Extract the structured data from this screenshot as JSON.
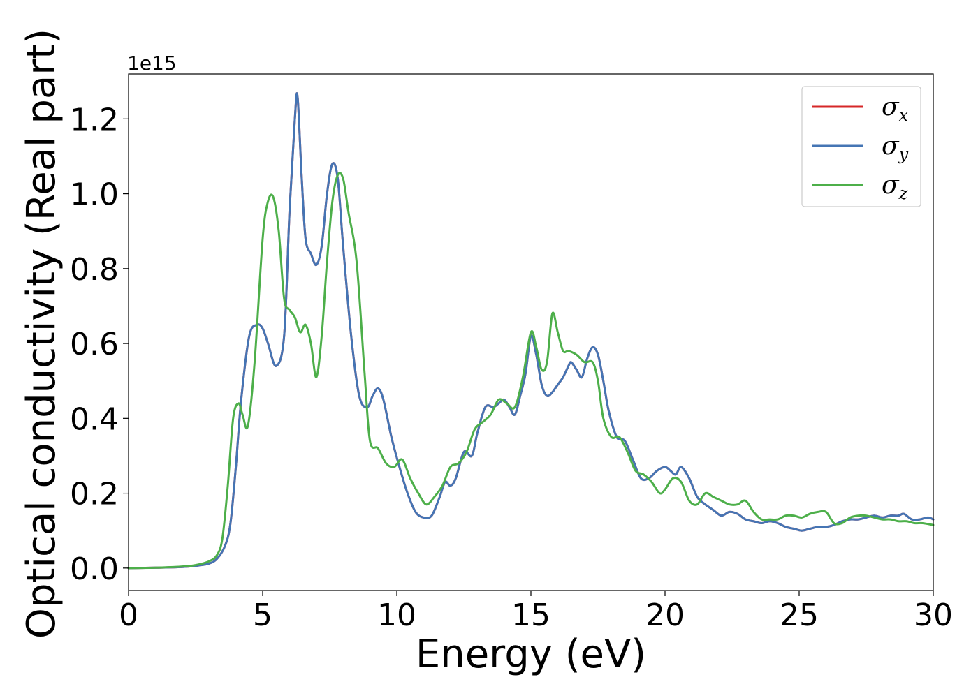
{
  "chart_data": {
    "type": "line",
    "xlabel": "Energy (eV)",
    "ylabel": "Optical conductivity (Real part)",
    "y_offset_text": "1e15",
    "y_multiplier": 1000000000000000.0,
    "xlim": [
      0,
      30
    ],
    "ylim": [
      -0.06,
      1.32
    ],
    "xticks": [
      0,
      5,
      10,
      15,
      20,
      25,
      30
    ],
    "xtick_labels": [
      "0",
      "5",
      "10",
      "15",
      "20",
      "25",
      "30"
    ],
    "yticks": [
      0.0,
      0.2,
      0.4,
      0.6,
      0.8,
      1.0,
      1.2
    ],
    "ytick_labels": [
      "0.0",
      "0.2",
      "0.4",
      "0.6",
      "0.8",
      "1.0",
      "1.2"
    ],
    "grid": false,
    "legend_position": "top-right",
    "legend_entries": [
      {
        "symbol": "σ",
        "subscript": "x",
        "color": "#d62728"
      },
      {
        "symbol": "σ",
        "subscript": "y",
        "color": "#4575b4"
      },
      {
        "symbol": "σ",
        "subscript": "z",
        "color": "#4daf4a"
      }
    ],
    "series": [
      {
        "name": "σx",
        "color": "#d62728",
        "x": [
          0,
          1,
          2,
          2.5,
          3,
          3.3,
          3.6,
          3.8,
          4.0,
          4.2,
          4.5,
          4.8,
          5.0,
          5.2,
          5.5,
          5.8,
          6.0,
          6.2,
          6.3,
          6.45,
          6.6,
          6.8,
          7.0,
          7.2,
          7.4,
          7.6,
          7.8,
          8.0,
          8.3,
          8.6,
          8.9,
          9.1,
          9.3,
          9.5,
          9.8,
          10.1,
          10.4,
          10.7,
          11.0,
          11.3,
          11.6,
          11.8,
          12.0,
          12.2,
          12.5,
          12.8,
          13.0,
          13.3,
          13.6,
          13.8,
          14.0,
          14.2,
          14.4,
          14.6,
          14.8,
          15.0,
          15.2,
          15.4,
          15.6,
          15.8,
          16.0,
          16.2,
          16.4,
          16.5,
          16.7,
          16.9,
          17.1,
          17.3,
          17.5,
          17.7,
          17.9,
          18.2,
          18.5,
          18.8,
          19.1,
          19.4,
          19.7,
          20.0,
          20.2,
          20.4,
          20.6,
          20.9,
          21.2,
          21.5,
          21.8,
          22.1,
          22.4,
          22.7,
          23.0,
          23.3,
          23.6,
          23.9,
          24.2,
          24.5,
          24.8,
          25.1,
          25.4,
          25.7,
          26.0,
          26.3,
          26.6,
          26.9,
          27.2,
          27.5,
          27.8,
          28.1,
          28.4,
          28.7,
          28.9,
          29.2,
          29.5,
          29.8,
          30.0
        ],
        "y": [
          0.0,
          0.001,
          0.003,
          0.006,
          0.012,
          0.025,
          0.06,
          0.12,
          0.27,
          0.45,
          0.62,
          0.65,
          0.64,
          0.6,
          0.54,
          0.62,
          0.95,
          1.2,
          1.26,
          1.05,
          0.88,
          0.84,
          0.81,
          0.86,
          1.0,
          1.08,
          1.04,
          0.86,
          0.62,
          0.46,
          0.43,
          0.46,
          0.48,
          0.45,
          0.35,
          0.27,
          0.2,
          0.15,
          0.135,
          0.14,
          0.19,
          0.23,
          0.22,
          0.24,
          0.31,
          0.3,
          0.36,
          0.43,
          0.43,
          0.44,
          0.45,
          0.43,
          0.41,
          0.46,
          0.52,
          0.62,
          0.57,
          0.49,
          0.46,
          0.47,
          0.49,
          0.51,
          0.54,
          0.55,
          0.53,
          0.51,
          0.56,
          0.59,
          0.57,
          0.5,
          0.42,
          0.35,
          0.34,
          0.29,
          0.24,
          0.24,
          0.26,
          0.27,
          0.26,
          0.25,
          0.27,
          0.24,
          0.19,
          0.17,
          0.155,
          0.14,
          0.15,
          0.145,
          0.13,
          0.125,
          0.12,
          0.125,
          0.12,
          0.11,
          0.105,
          0.1,
          0.105,
          0.11,
          0.11,
          0.115,
          0.125,
          0.13,
          0.13,
          0.135,
          0.14,
          0.135,
          0.14,
          0.14,
          0.145,
          0.13,
          0.13,
          0.135,
          0.13
        ]
      },
      {
        "name": "σy",
        "color": "#4575b4",
        "x": [
          0,
          1,
          2,
          2.5,
          3,
          3.3,
          3.6,
          3.8,
          4.0,
          4.2,
          4.5,
          4.8,
          5.0,
          5.2,
          5.5,
          5.8,
          6.0,
          6.2,
          6.3,
          6.45,
          6.6,
          6.8,
          7.0,
          7.2,
          7.4,
          7.6,
          7.8,
          8.0,
          8.3,
          8.6,
          8.9,
          9.1,
          9.3,
          9.5,
          9.8,
          10.1,
          10.4,
          10.7,
          11.0,
          11.3,
          11.6,
          11.8,
          12.0,
          12.2,
          12.5,
          12.8,
          13.0,
          13.3,
          13.6,
          13.8,
          14.0,
          14.2,
          14.4,
          14.6,
          14.8,
          15.0,
          15.2,
          15.4,
          15.6,
          15.8,
          16.0,
          16.2,
          16.4,
          16.5,
          16.7,
          16.9,
          17.1,
          17.3,
          17.5,
          17.7,
          17.9,
          18.2,
          18.5,
          18.8,
          19.1,
          19.4,
          19.7,
          20.0,
          20.2,
          20.4,
          20.6,
          20.9,
          21.2,
          21.5,
          21.8,
          22.1,
          22.4,
          22.7,
          23.0,
          23.3,
          23.6,
          23.9,
          24.2,
          24.5,
          24.8,
          25.1,
          25.4,
          25.7,
          26.0,
          26.3,
          26.6,
          26.9,
          27.2,
          27.5,
          27.8,
          28.1,
          28.4,
          28.7,
          28.9,
          29.2,
          29.5,
          29.8,
          30.0
        ],
        "y": [
          0.0,
          0.001,
          0.003,
          0.006,
          0.012,
          0.025,
          0.06,
          0.12,
          0.27,
          0.45,
          0.62,
          0.65,
          0.64,
          0.6,
          0.54,
          0.62,
          0.95,
          1.2,
          1.26,
          1.05,
          0.88,
          0.84,
          0.81,
          0.86,
          1.0,
          1.08,
          1.04,
          0.86,
          0.62,
          0.46,
          0.43,
          0.46,
          0.48,
          0.45,
          0.35,
          0.27,
          0.2,
          0.15,
          0.135,
          0.14,
          0.19,
          0.23,
          0.22,
          0.24,
          0.31,
          0.3,
          0.36,
          0.43,
          0.43,
          0.44,
          0.45,
          0.43,
          0.41,
          0.46,
          0.52,
          0.62,
          0.57,
          0.49,
          0.46,
          0.47,
          0.49,
          0.51,
          0.54,
          0.55,
          0.53,
          0.51,
          0.56,
          0.59,
          0.57,
          0.5,
          0.42,
          0.35,
          0.34,
          0.29,
          0.24,
          0.24,
          0.26,
          0.27,
          0.26,
          0.25,
          0.27,
          0.24,
          0.19,
          0.17,
          0.155,
          0.14,
          0.15,
          0.145,
          0.13,
          0.125,
          0.12,
          0.125,
          0.12,
          0.11,
          0.105,
          0.1,
          0.105,
          0.11,
          0.11,
          0.115,
          0.125,
          0.13,
          0.13,
          0.135,
          0.14,
          0.135,
          0.14,
          0.14,
          0.145,
          0.13,
          0.13,
          0.135,
          0.13
        ]
      },
      {
        "name": "σz",
        "color": "#4daf4a",
        "x": [
          0,
          1,
          2,
          2.5,
          3,
          3.3,
          3.5,
          3.7,
          3.9,
          4.1,
          4.25,
          4.45,
          4.7,
          5.0,
          5.2,
          5.4,
          5.6,
          5.8,
          6.0,
          6.2,
          6.4,
          6.6,
          6.8,
          7.0,
          7.2,
          7.4,
          7.6,
          7.8,
          8.0,
          8.2,
          8.5,
          8.8,
          9.0,
          9.3,
          9.6,
          9.9,
          10.2,
          10.5,
          10.8,
          11.1,
          11.4,
          11.7,
          12.0,
          12.3,
          12.6,
          12.9,
          13.2,
          13.5,
          13.8,
          14.1,
          14.4,
          14.7,
          15.0,
          15.2,
          15.4,
          15.6,
          15.8,
          16.0,
          16.2,
          16.4,
          16.7,
          17.0,
          17.3,
          17.5,
          17.7,
          18.0,
          18.3,
          18.6,
          18.9,
          19.2,
          19.5,
          19.8,
          20.0,
          20.3,
          20.6,
          20.9,
          21.2,
          21.5,
          21.8,
          22.1,
          22.4,
          22.7,
          23.0,
          23.3,
          23.6,
          23.9,
          24.2,
          24.5,
          24.8,
          25.1,
          25.4,
          25.7,
          26.0,
          26.3,
          26.6,
          26.9,
          27.2,
          27.5,
          27.8,
          28.1,
          28.4,
          28.7,
          29.0,
          29.3,
          29.6,
          30.0
        ],
        "y": [
          0.0,
          0.001,
          0.004,
          0.008,
          0.018,
          0.035,
          0.08,
          0.22,
          0.4,
          0.44,
          0.41,
          0.38,
          0.55,
          0.88,
          0.98,
          0.99,
          0.9,
          0.72,
          0.69,
          0.67,
          0.63,
          0.65,
          0.6,
          0.51,
          0.62,
          0.82,
          0.98,
          1.05,
          1.04,
          0.95,
          0.82,
          0.52,
          0.34,
          0.32,
          0.28,
          0.27,
          0.29,
          0.24,
          0.2,
          0.17,
          0.19,
          0.22,
          0.27,
          0.28,
          0.31,
          0.37,
          0.39,
          0.41,
          0.45,
          0.44,
          0.43,
          0.51,
          0.63,
          0.59,
          0.53,
          0.55,
          0.68,
          0.63,
          0.58,
          0.58,
          0.57,
          0.55,
          0.55,
          0.5,
          0.4,
          0.35,
          0.35,
          0.31,
          0.26,
          0.25,
          0.23,
          0.2,
          0.21,
          0.24,
          0.23,
          0.18,
          0.17,
          0.2,
          0.19,
          0.18,
          0.17,
          0.17,
          0.18,
          0.15,
          0.13,
          0.13,
          0.13,
          0.14,
          0.14,
          0.135,
          0.145,
          0.15,
          0.15,
          0.12,
          0.12,
          0.135,
          0.14,
          0.14,
          0.135,
          0.13,
          0.13,
          0.125,
          0.125,
          0.12,
          0.12,
          0.115
        ]
      }
    ]
  }
}
